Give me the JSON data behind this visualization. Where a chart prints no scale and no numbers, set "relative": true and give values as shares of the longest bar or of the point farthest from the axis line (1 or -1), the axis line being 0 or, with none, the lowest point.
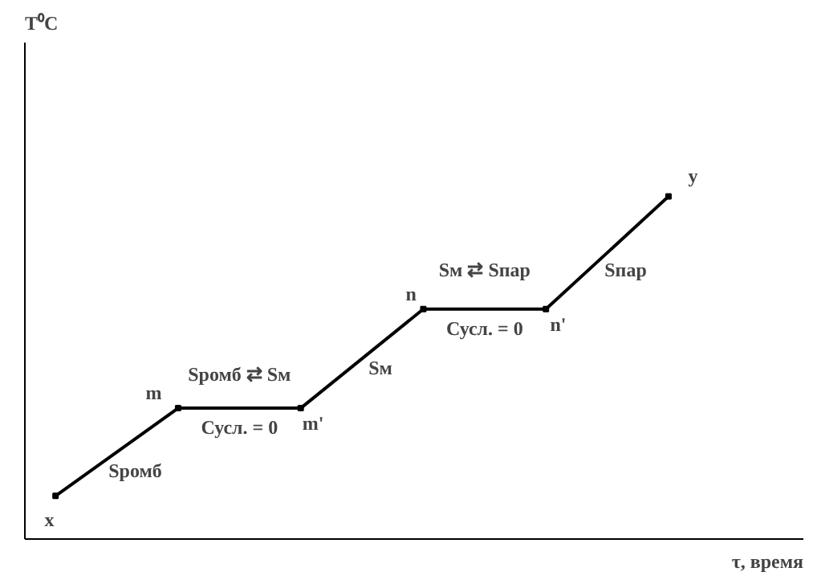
{
  "chart_data": {
    "type": "line",
    "relative": true,
    "xlabel": "τ, время",
    "categories": [
      "x",
      "m",
      "m'",
      "n",
      "n'",
      "y"
    ],
    "series": [
      {
        "color": "#000000",
        "values": [
          0.126,
          0.382,
          0.382,
          0.671,
          0.671,
          1
        ]
      }
    ],
    "marker": "square",
    "line_style": "solid",
    "annotations": [
      "T⁰C",
      "Sромб",
      "Sромб ⇄ Sм",
      "Сусл. = 0",
      "Sм",
      "Sм ⇄ Sпар",
      "Сусл. = 0",
      "Sпар"
    ]
  }
}
